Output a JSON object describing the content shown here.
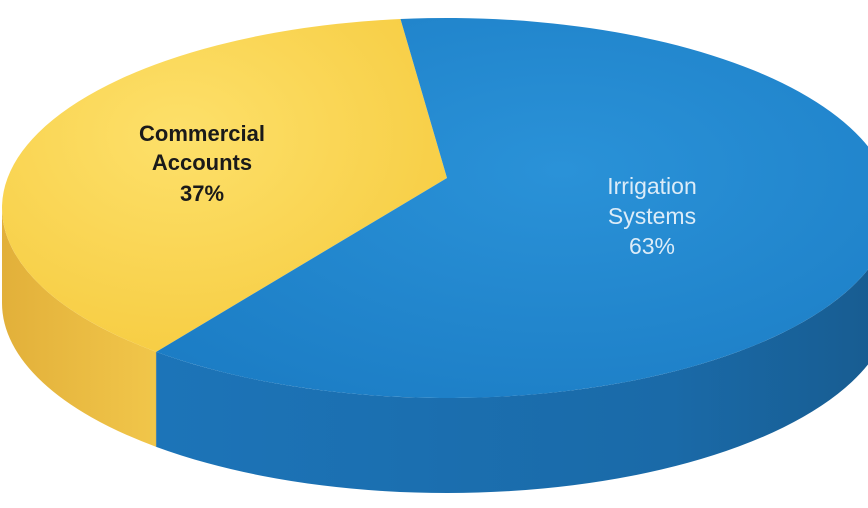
{
  "chart_data": {
    "type": "pie",
    "style": "3d",
    "title": "",
    "slices": [
      {
        "label_line1": "Commercial",
        "label_line2": "Accounts",
        "percent_label": "37%",
        "value": 37,
        "color": "#f9d44a",
        "side_color": "#e9b93a"
      },
      {
        "label_line1": "Irrigation",
        "label_line2": "Systems",
        "percent_label": "63%",
        "value": 63,
        "color": "#1f86cf",
        "side_color": "#1a6aa6"
      }
    ],
    "legend": "none"
  }
}
